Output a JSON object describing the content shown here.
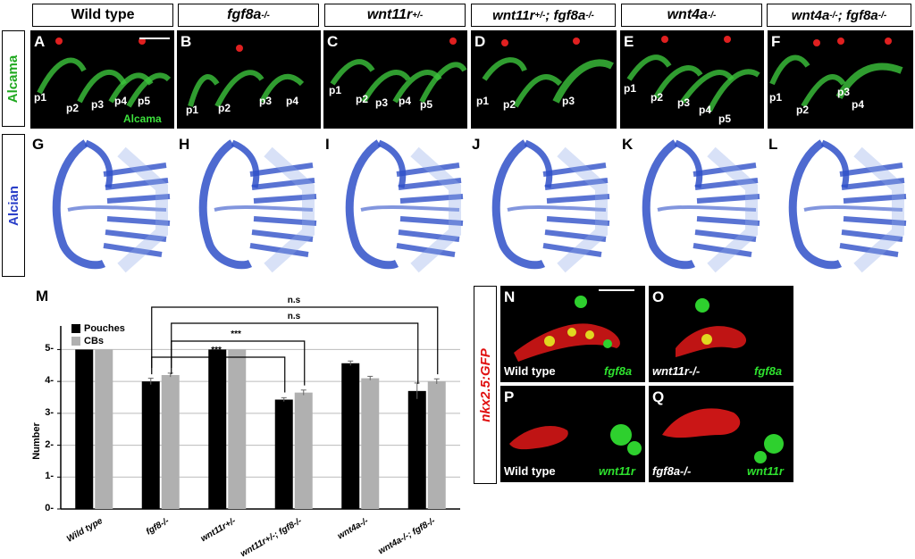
{
  "headers": [
    {
      "text": "Wild type",
      "italic": false
    },
    {
      "text": "fgf8a",
      "sup": "-/-",
      "italic": true
    },
    {
      "text": "wnt11r",
      "sup": "+/-",
      "italic": true
    },
    {
      "text": "wnt11r",
      "sup": "+/-",
      "text2": "; fgf8a",
      "sup2": "-/-",
      "italic": true
    },
    {
      "text": "wnt4a",
      "sup": "-/-",
      "italic": true
    },
    {
      "text": "wnt4a",
      "sup": "-/-",
      "text2": "; fgf8a",
      "sup2": "-/-",
      "italic": true
    }
  ],
  "row_labels": {
    "alcama": "Alcama",
    "alcian": "Alcian",
    "nkx": "nkx2.5:GFP"
  },
  "top_panels": [
    {
      "letter": "A",
      "labels": [
        "p1",
        "p2",
        "p3",
        "p4",
        "p5"
      ],
      "marker": "Alcama"
    },
    {
      "letter": "B",
      "labels": [
        "p1",
        "p2",
        "p3",
        "p4"
      ]
    },
    {
      "letter": "C",
      "labels": [
        "p1",
        "p2",
        "p3",
        "p4",
        "p5"
      ]
    },
    {
      "letter": "D",
      "labels": [
        "p1",
        "p2",
        "p3"
      ]
    },
    {
      "letter": "E",
      "labels": [
        "p1",
        "p2",
        "p3",
        "p4",
        "p5"
      ]
    },
    {
      "letter": "F",
      "labels": [
        "p1",
        "p2",
        "p3",
        "p4"
      ]
    }
  ],
  "alcian_letters": [
    "G",
    "H",
    "I",
    "J",
    "K",
    "L"
  ],
  "chart_data": {
    "type": "bar",
    "panel_letter": "M",
    "categories": [
      "Wild type",
      "fgf8-/-",
      "wnt11r+/-",
      "wnt11r+/-; fgf8-/-",
      "wnt4a-/-",
      "wnt4a-/-; fgf8-/-"
    ],
    "series": [
      {
        "name": "Pouches",
        "color": "#000000",
        "values": [
          5.0,
          4.0,
          5.0,
          3.43,
          4.57,
          3.7
        ],
        "err": [
          0,
          0.1,
          0,
          0.06,
          0.07,
          0.25
        ]
      },
      {
        "name": "CBs",
        "color": "#b0b0b0",
        "values": [
          5.0,
          4.2,
          5.0,
          3.65,
          4.1,
          4.0
        ],
        "err": [
          0,
          0.06,
          0,
          0.08,
          0.06,
          0.08
        ]
      }
    ],
    "ylabel": "Number",
    "yticks": [
      "0",
      "1",
      "2",
      "3",
      "4",
      "5"
    ],
    "ylim": [
      0,
      5.6
    ],
    "grid": true,
    "legend": "top-left",
    "significance": [
      "***",
      "***",
      "n.s",
      "n.s"
    ]
  },
  "bottom_panels": [
    {
      "letter": "N",
      "genotype": "Wild type",
      "probe": "fgf8a"
    },
    {
      "letter": "O",
      "genotype": "wnt11r-/-",
      "probe": "fgf8a"
    },
    {
      "letter": "P",
      "genotype": "Wild type",
      "probe": "wnt11r"
    },
    {
      "letter": "Q",
      "genotype": "fgf8a-/-",
      "probe": "wnt11r"
    }
  ]
}
